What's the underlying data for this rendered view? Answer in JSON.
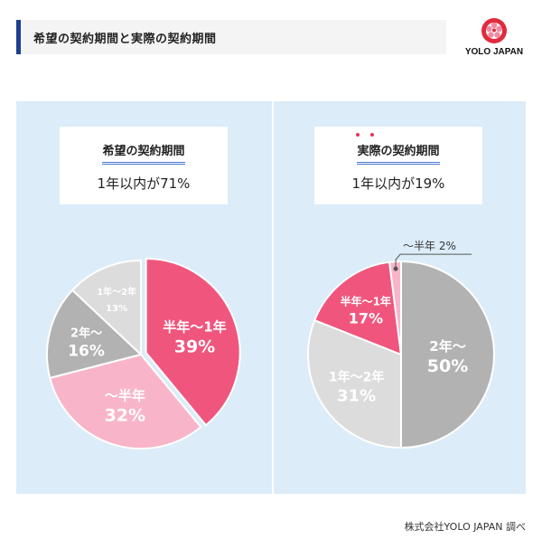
{
  "title": "希望の契約期間と実際の契約期間",
  "logo": {
    "text": "YOLO JAPAN",
    "icon": "flower-emblem"
  },
  "source": "株式会社YOLO JAPAN 調べ",
  "colors": {
    "half_to_1yr": "#f0567d",
    "under_half": "#f8b5c9",
    "two_plus": "#b2b2b2",
    "one_to_two": "#dcdcdc",
    "panel": "#dcecf8",
    "accent": "#1e3f8f"
  },
  "chart_data": [
    {
      "type": "pie",
      "heading": "希望の契約期間",
      "subtitle": "1年以内が71%",
      "slices": [
        {
          "label": "半年〜1年",
          "value": 39,
          "color": "#f0567d"
        },
        {
          "label": "〜半年",
          "value": 32,
          "color": "#f8b5c9"
        },
        {
          "label": "2年〜",
          "value": 16,
          "color": "#b2b2b2"
        },
        {
          "label": "1年〜2年",
          "value": 13,
          "color": "#dcdcdc"
        }
      ]
    },
    {
      "type": "pie",
      "heading": "実際の契約期間",
      "subtitle": "1年以内が19%",
      "slices": [
        {
          "label": "2年〜",
          "value": 50,
          "color": "#b2b2b2"
        },
        {
          "label": "1年〜2年",
          "value": 31,
          "color": "#dcdcdc"
        },
        {
          "label": "半年〜1年",
          "value": 17,
          "color": "#f0567d"
        },
        {
          "label": "〜半年",
          "value": 2,
          "color": "#f8b5c9"
        }
      ]
    }
  ]
}
